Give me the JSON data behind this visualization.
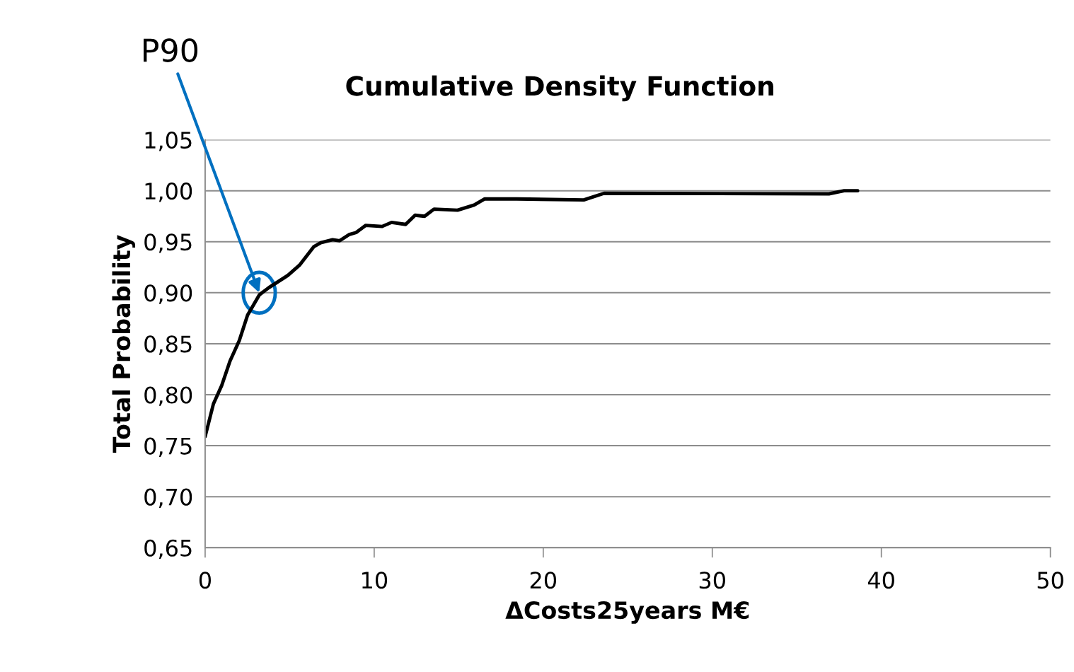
{
  "chart_data": {
    "type": "line",
    "title": "Cumulative Density Function",
    "xlabel": "ΔCosts25years M€",
    "ylabel": "Total Probability",
    "series": [
      {
        "color": "#000000",
        "x": [
          0,
          0.49,
          0.98,
          1.47,
          2.02,
          2.51,
          3.21,
          3.77,
          4.89,
          5.58,
          6.42,
          6.84,
          7.54,
          7.96,
          8.51,
          8.93,
          9.49,
          10.47,
          11.03,
          11.86,
          12.42,
          12.98,
          13.54,
          14.93,
          15.91,
          16.54,
          18.43,
          22.4,
          23.6,
          36.9,
          37.8,
          38.6
        ],
        "values": [
          0.759,
          0.791,
          0.809,
          0.833,
          0.853,
          0.878,
          0.898,
          0.905,
          0.917,
          0.927,
          0.945,
          0.949,
          0.952,
          0.951,
          0.957,
          0.959,
          0.966,
          0.965,
          0.969,
          0.967,
          0.976,
          0.975,
          0.982,
          0.981,
          0.986,
          0.992,
          0.992,
          0.991,
          0.9975,
          0.997,
          1.0,
          1.0
        ]
      }
    ],
    "annotations": [
      {
        "text": "P90",
        "x": 3.2,
        "y": 0.9
      }
    ],
    "xlim": [
      0,
      50
    ],
    "xticks": [
      0,
      10,
      20,
      30,
      40,
      50
    ],
    "ylim": [
      0.65,
      1.05
    ],
    "yticks": [
      {
        "value": 0.65,
        "label": "0,65"
      },
      {
        "value": 0.7,
        "label": "0,70"
      },
      {
        "value": 0.75,
        "label": "0,75"
      },
      {
        "value": 0.8,
        "label": "0,80"
      },
      {
        "value": 0.85,
        "label": "0,85"
      },
      {
        "value": 0.9,
        "label": "0,90"
      },
      {
        "value": 0.95,
        "label": "0,95"
      },
      {
        "value": 1.0,
        "label": "1,00"
      },
      {
        "value": 1.05,
        "label": "1,05"
      }
    ],
    "grid": "y",
    "marker": "none",
    "line_style": "solid"
  }
}
